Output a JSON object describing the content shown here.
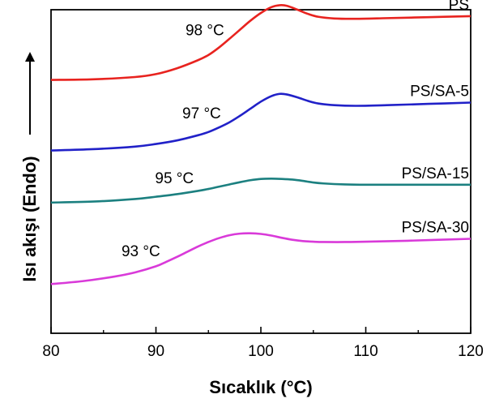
{
  "chart_data": {
    "type": "line",
    "xlabel": "Sıcaklık (°C)",
    "ylabel": "Isı akışı (Endo)",
    "xlim": [
      80,
      120
    ],
    "xticks": [
      "80",
      "90",
      "100",
      "110",
      "120"
    ],
    "yticks_shown": false,
    "grid": false,
    "series": [
      {
        "name": "PS",
        "color": "#e8231f",
        "annotation": "98 °C",
        "annotation_x": 96.5,
        "x": [
          80,
          84,
          88,
          90,
          92,
          94,
          95,
          96,
          97,
          98,
          99,
          100,
          101,
          101.8,
          102.5,
          103.5,
          104.5,
          105.5,
          107,
          109,
          112,
          116,
          120
        ],
        "y": [
          0.783,
          0.785,
          0.792,
          0.801,
          0.819,
          0.844,
          0.86,
          0.883,
          0.91,
          0.938,
          0.966,
          0.99,
          1.008,
          1.014,
          1.012,
          1.0,
          0.987,
          0.978,
          0.973,
          0.972,
          0.974,
          0.977,
          0.98
        ]
      },
      {
        "name": "PS/SA-5",
        "color": "#2121c8",
        "annotation": "97 °C",
        "annotation_x": 96.2,
        "x": [
          80,
          84,
          88,
          90,
          92,
          94,
          95,
          96,
          97,
          98,
          99,
          100,
          101,
          101.8,
          102.5,
          103.5,
          104.5,
          105.5,
          107,
          109,
          112,
          116,
          120
        ],
        "y": [
          0.565,
          0.569,
          0.577,
          0.585,
          0.596,
          0.612,
          0.622,
          0.636,
          0.652,
          0.672,
          0.694,
          0.716,
          0.733,
          0.74,
          0.738,
          0.729,
          0.718,
          0.71,
          0.705,
          0.703,
          0.705,
          0.709,
          0.713
        ]
      },
      {
        "name": "PS/SA-15",
        "color": "#1c8080",
        "annotation": "95 °C",
        "annotation_x": 93.6,
        "x": [
          80,
          84,
          88,
          90,
          92,
          94,
          95,
          96,
          97,
          98,
          99,
          100,
          101,
          102,
          103,
          104,
          105,
          106,
          108,
          110,
          114,
          120
        ],
        "y": [
          0.404,
          0.407,
          0.415,
          0.422,
          0.43,
          0.44,
          0.446,
          0.453,
          0.46,
          0.467,
          0.473,
          0.477,
          0.478,
          0.477,
          0.475,
          0.471,
          0.466,
          0.463,
          0.46,
          0.459,
          0.459,
          0.459
        ]
      },
      {
        "name": "PS/SA-30",
        "color": "#d93ad9",
        "annotation": "93 °C",
        "annotation_x": 90.4,
        "x": [
          80,
          83,
          86,
          88,
          90,
          91,
          92,
          93,
          94,
          95,
          96,
          97,
          98,
          99,
          100,
          101,
          102,
          103,
          104,
          105,
          106,
          108,
          110,
          114,
          120
        ],
        "y": [
          0.152,
          0.161,
          0.175,
          0.188,
          0.207,
          0.221,
          0.236,
          0.252,
          0.268,
          0.282,
          0.294,
          0.303,
          0.308,
          0.309,
          0.307,
          0.302,
          0.295,
          0.289,
          0.285,
          0.283,
          0.282,
          0.282,
          0.283,
          0.286,
          0.292
        ]
      }
    ]
  }
}
